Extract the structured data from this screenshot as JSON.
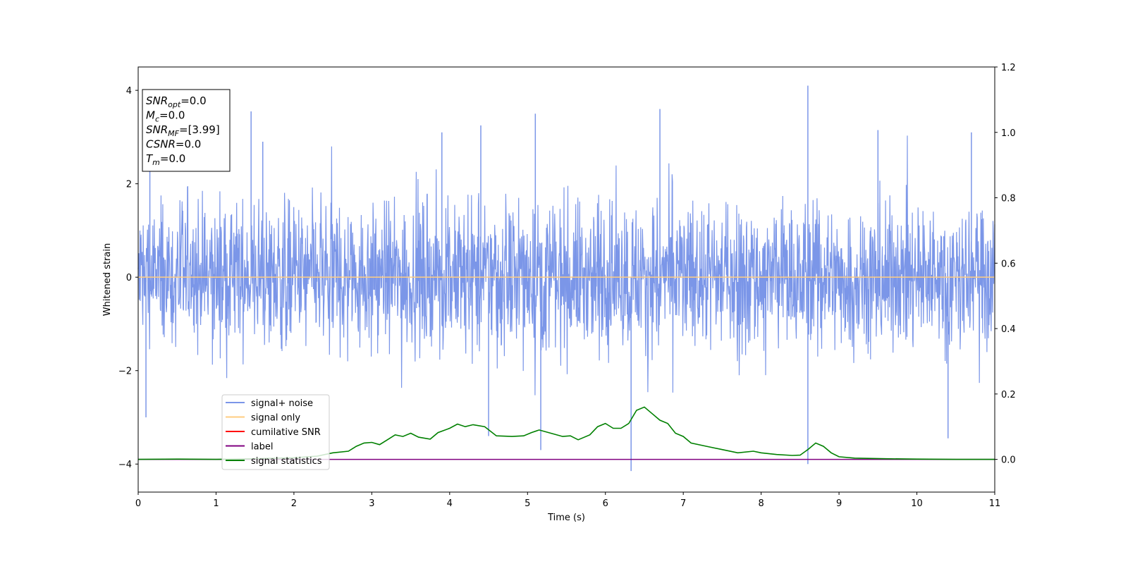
{
  "chart_data": {
    "type": "line",
    "title": "",
    "xlabel": "Time (s)",
    "ylabel": "Whitened strain",
    "xlim": [
      0,
      11
    ],
    "ylim": [
      -4.6,
      4.5
    ],
    "y2lim": [
      -0.1,
      1.2
    ],
    "grid": false,
    "legend_position": "lower-left",
    "x_ticks": [
      "0",
      "1",
      "2",
      "3",
      "4",
      "5",
      "6",
      "7",
      "8",
      "9",
      "10",
      "11"
    ],
    "y_ticks": [
      "4",
      "2",
      "0",
      "−2",
      "−4"
    ],
    "y2_ticks": [
      "1.2",
      "1.0",
      "0.8",
      "0.6",
      "0.4",
      "0.2",
      "0.0"
    ],
    "annotation": {
      "snr_opt": {
        "name": "SNR",
        "sub": "opt",
        "value": "=0.0"
      },
      "mc": {
        "name": "M",
        "sub": "c",
        "value": "=0.0"
      },
      "snr_mf": {
        "name": "SNR",
        "sub": "MF",
        "value": "=[3.99]"
      },
      "csnr": {
        "name": "CSNR",
        "value": "=0.0"
      },
      "tm": {
        "name": "T",
        "sub": "m",
        "value": "=0.0"
      }
    },
    "series": [
      {
        "name": "signal+ noise",
        "color": "#7b96e8",
        "axis": "left",
        "spikes": [
          [
            1.45,
            3.55
          ],
          [
            5.1,
            3.5
          ],
          [
            6.7,
            3.6
          ],
          [
            8.6,
            4.1
          ],
          [
            6.33,
            -4.15
          ],
          [
            8.6,
            -4.0
          ],
          [
            5.17,
            -3.7
          ],
          [
            4.5,
            -3.4
          ],
          [
            10.4,
            -3.45
          ],
          [
            0.1,
            -3.0
          ],
          [
            0.15,
            3.1
          ],
          [
            1.6,
            2.9
          ],
          [
            3.9,
            3.1
          ],
          [
            4.4,
            3.25
          ],
          [
            9.5,
            3.15
          ],
          [
            10.7,
            3.1
          ]
        ]
      },
      {
        "name": "signal only",
        "color": "#ffcc80",
        "axis": "left",
        "y": 0
      },
      {
        "name": "cumilative SNR",
        "color": "#ff0000",
        "axis": "right"
      },
      {
        "name": "label",
        "color": "#800080",
        "axis": "right",
        "y": 0.0
      },
      {
        "name": "signal statistics",
        "color": "#008000",
        "axis": "right",
        "points": [
          [
            0,
            0.0
          ],
          [
            0.5,
            0.001
          ],
          [
            1.0,
            0.0
          ],
          [
            1.5,
            0.002
          ],
          [
            2.0,
            0.005
          ],
          [
            2.3,
            0.01
          ],
          [
            2.5,
            0.02
          ],
          [
            2.7,
            0.025
          ],
          [
            2.8,
            0.04
          ],
          [
            2.9,
            0.05
          ],
          [
            3.0,
            0.052
          ],
          [
            3.1,
            0.045
          ],
          [
            3.2,
            0.06
          ],
          [
            3.3,
            0.075
          ],
          [
            3.4,
            0.07
          ],
          [
            3.5,
            0.08
          ],
          [
            3.6,
            0.068
          ],
          [
            3.75,
            0.062
          ],
          [
            3.85,
            0.082
          ],
          [
            4.0,
            0.095
          ],
          [
            4.1,
            0.108
          ],
          [
            4.2,
            0.1
          ],
          [
            4.3,
            0.106
          ],
          [
            4.45,
            0.1
          ],
          [
            4.6,
            0.072
          ],
          [
            4.8,
            0.07
          ],
          [
            4.95,
            0.072
          ],
          [
            5.05,
            0.082
          ],
          [
            5.15,
            0.09
          ],
          [
            5.3,
            0.08
          ],
          [
            5.45,
            0.07
          ],
          [
            5.55,
            0.072
          ],
          [
            5.65,
            0.06
          ],
          [
            5.8,
            0.075
          ],
          [
            5.9,
            0.1
          ],
          [
            6.0,
            0.11
          ],
          [
            6.1,
            0.095
          ],
          [
            6.2,
            0.095
          ],
          [
            6.3,
            0.11
          ],
          [
            6.4,
            0.15
          ],
          [
            6.5,
            0.16
          ],
          [
            6.6,
            0.14
          ],
          [
            6.7,
            0.12
          ],
          [
            6.8,
            0.11
          ],
          [
            6.9,
            0.08
          ],
          [
            7.0,
            0.07
          ],
          [
            7.1,
            0.05
          ],
          [
            7.3,
            0.04
          ],
          [
            7.5,
            0.03
          ],
          [
            7.7,
            0.02
          ],
          [
            7.9,
            0.025
          ],
          [
            8.0,
            0.02
          ],
          [
            8.2,
            0.015
          ],
          [
            8.4,
            0.012
          ],
          [
            8.5,
            0.013
          ],
          [
            8.6,
            0.03
          ],
          [
            8.7,
            0.05
          ],
          [
            8.8,
            0.04
          ],
          [
            8.9,
            0.02
          ],
          [
            9.0,
            0.008
          ],
          [
            9.2,
            0.004
          ],
          [
            9.6,
            0.002
          ],
          [
            10.0,
            0.001
          ],
          [
            10.5,
            0.0
          ],
          [
            11.0,
            0.0
          ]
        ]
      }
    ]
  }
}
